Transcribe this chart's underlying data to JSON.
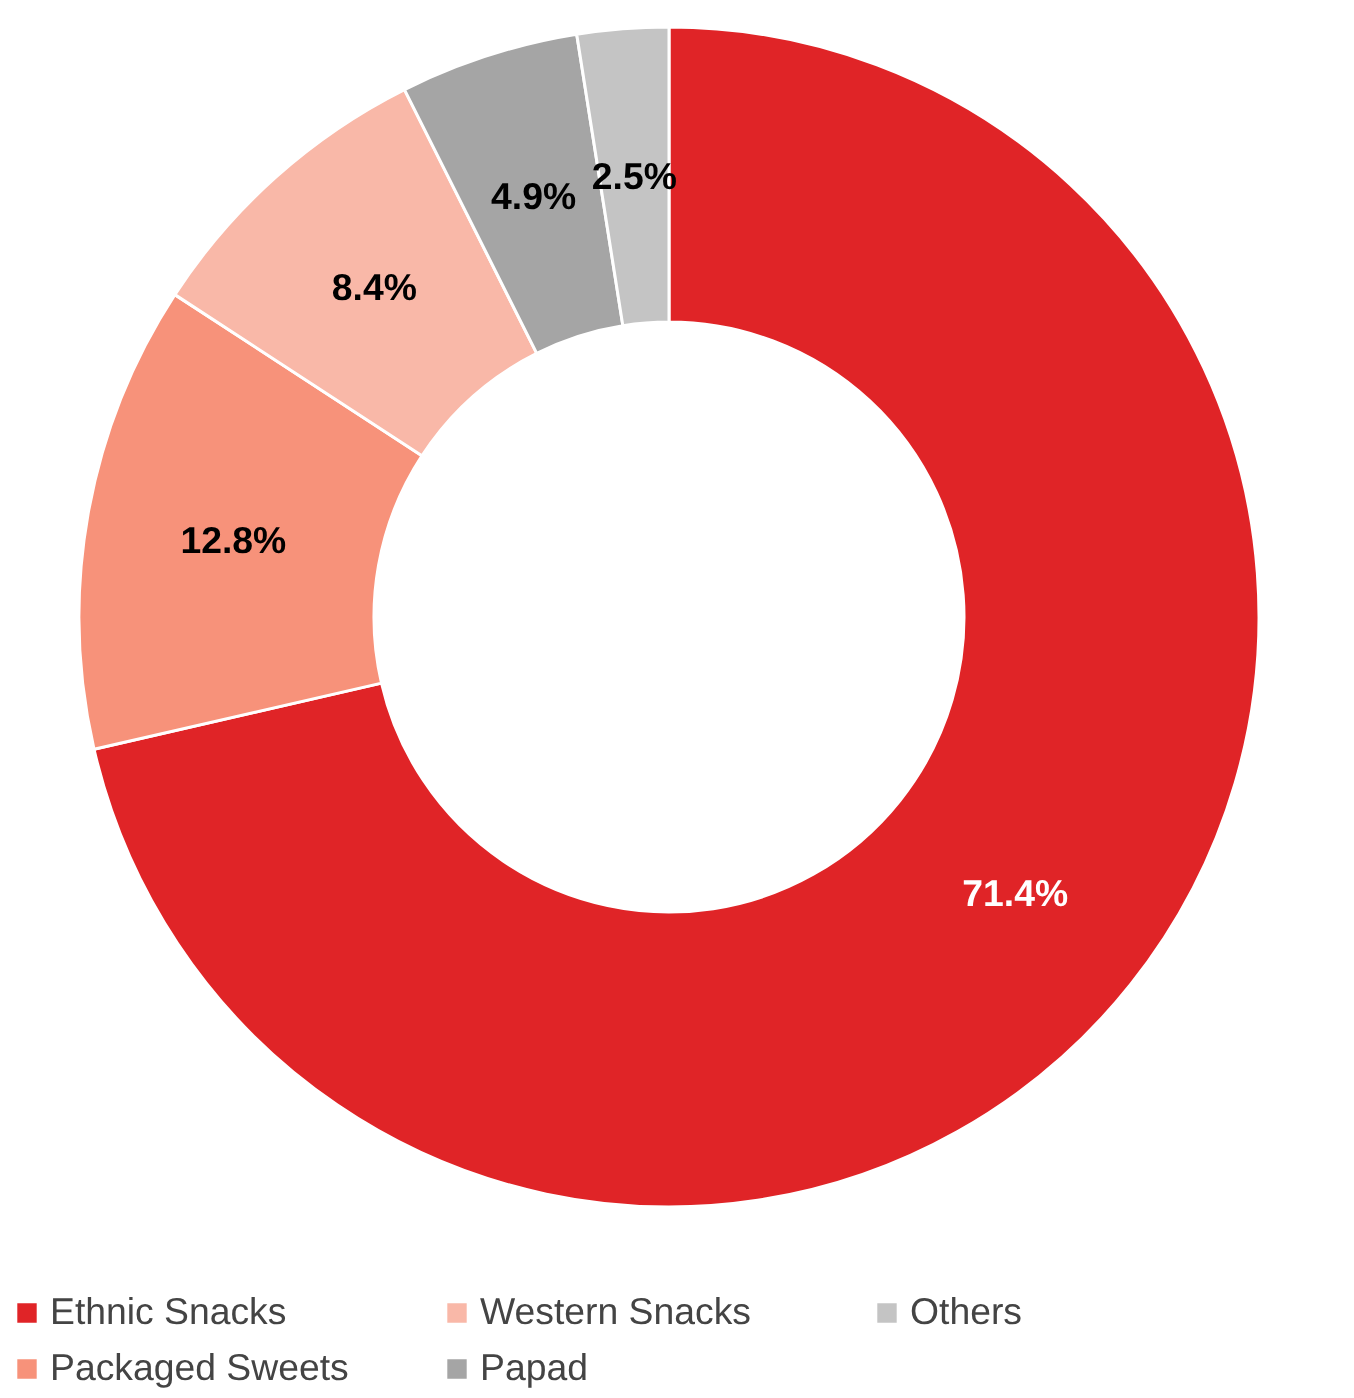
{
  "chart_data": {
    "type": "donut",
    "categories": [
      "Ethnic Snacks",
      "Packaged Sweets",
      "Western Snacks",
      "Papad",
      "Others"
    ],
    "values": [
      71.4,
      12.8,
      8.4,
      4.9,
      2.5
    ],
    "value_labels": [
      "71.4%",
      "12.8%",
      "8.4%",
      "4.9%",
      "2.5%"
    ],
    "colors": [
      "#e02427",
      "#f7927a",
      "#f9b8a8",
      "#a5a5a5",
      "#c4c4c4"
    ],
    "legend": "bottom"
  }
}
